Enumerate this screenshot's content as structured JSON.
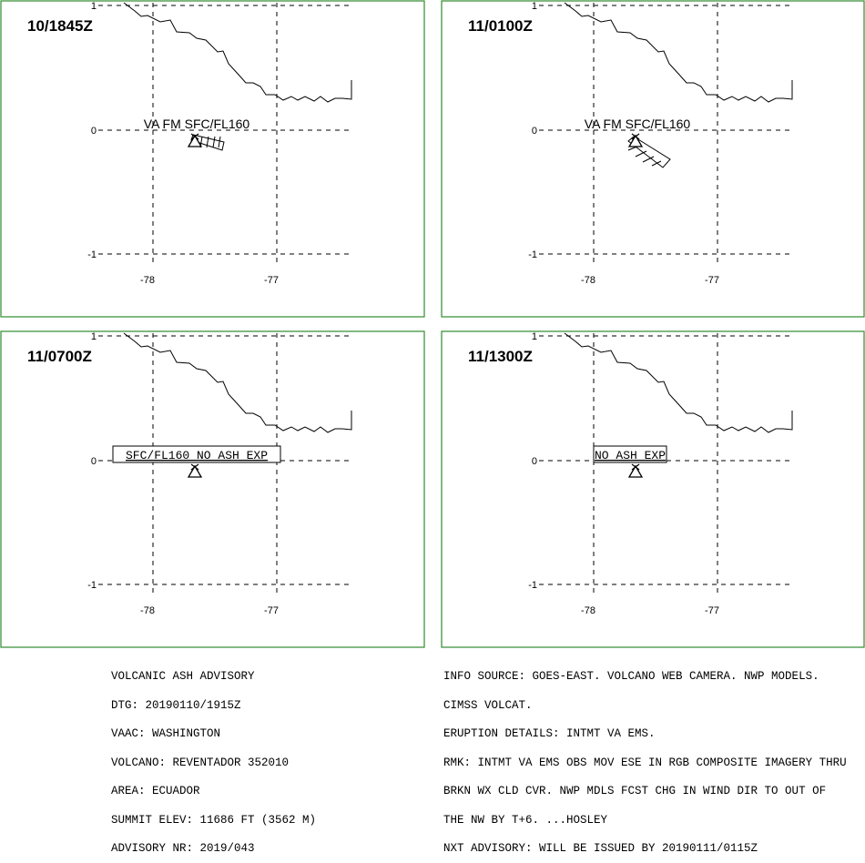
{
  "colors": {
    "frame": "#2e8b2e",
    "grid": "#000000",
    "coast": "#000000",
    "ash": "#000000"
  },
  "icons": {
    "volcano": "triangle-volcano-icon"
  },
  "panels": [
    {
      "time": "10/1845Z",
      "annotation": "VA FM SFC/FL160",
      "boxed": false,
      "ash": "plume-ese-short"
    },
    {
      "time": "11/0100Z",
      "annotation": "VA FM SFC/FL160",
      "boxed": false,
      "ash": "plume-se-long"
    },
    {
      "time": "11/0700Z",
      "annotation": "SFC/FL160 NO ASH EXP",
      "boxed": true,
      "ash": "none"
    },
    {
      "time": "11/1300Z",
      "annotation": "NO ASH EXP",
      "boxed": true,
      "ash": "none"
    }
  ],
  "axes": {
    "lat_ticks": [
      "1",
      "0",
      "-1"
    ],
    "lon_ticks": [
      "-78",
      "-77"
    ]
  },
  "advisory_left": [
    "VOLCANIC ASH ADVISORY",
    "DTG: 20190110/1915Z",
    "VAAC: WASHINGTON",
    "VOLCANO: REVENTADOR 352010",
    "AREA: ECUADOR",
    "SUMMIT ELEV: 11686 FT (3562 M)",
    "ADVISORY NR: 2019/043"
  ],
  "advisory_right": [
    "INFO SOURCE: GOES-EAST. VOLCANO WEB CAMERA. NWP MODELS.",
    "CIMSS VOLCAT.",
    "ERUPTION DETAILS: INTMT VA EMS.",
    "RMK: INTMT VA EMS OBS MOV ESE IN RGB COMPOSITE IMAGERY THRU",
    "BRKN WX CLD CVR. NWP MDLS FCST CHG IN WIND DIR TO OUT OF",
    "THE NW BY T+6. ...HOSLEY",
    "NXT ADVISORY: WILL BE ISSUED BY 20190111/0115Z"
  ]
}
